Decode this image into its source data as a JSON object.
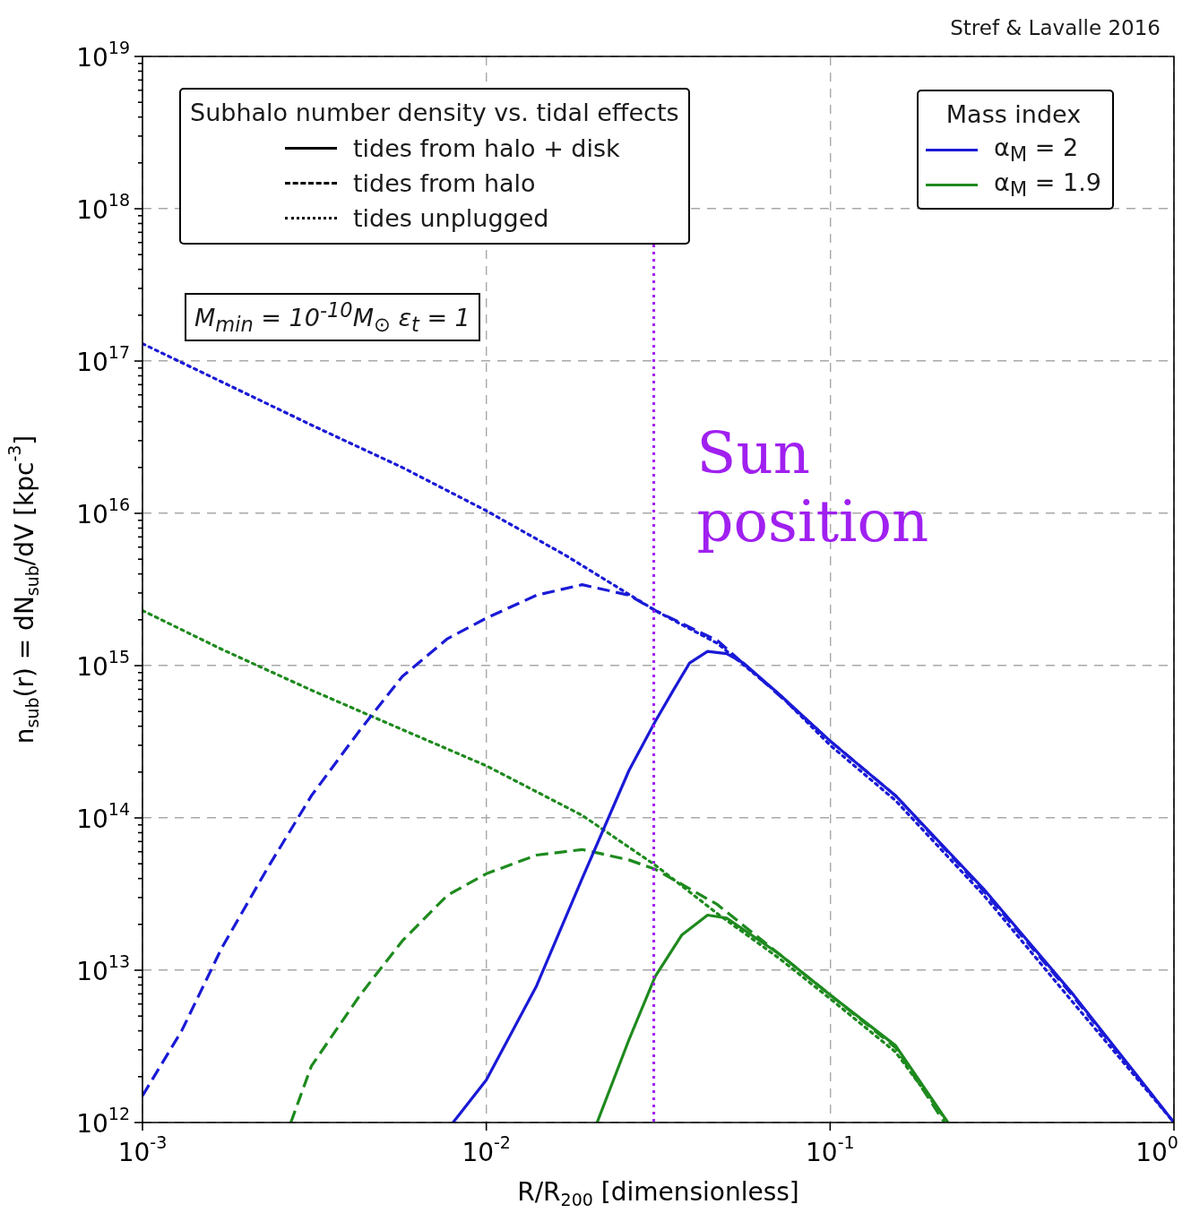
{
  "chart_data": {
    "type": "line",
    "xlabel": "R/R$_{200}$ [dimensionless]",
    "ylabel": "n$_{sub}$(r) = dN$_{sub}$/dV [kpc$^{-3}$]",
    "legend_title": "Mass index",
    "legend": "top right",
    "grid": true,
    "log": "xy",
    "xlim": [
      0.001,
      1
    ],
    "xticks": [
      {
        "value": 0.001,
        "label": "10$^{-3}$"
      },
      {
        "value": 0.01,
        "label": "10$^{-2}$"
      },
      {
        "value": 0.1,
        "label": "10$^{-1}$"
      },
      {
        "value": 1,
        "label": "10$^{0}$"
      }
    ],
    "ylim": [
      1000000000000.0,
      1e+19
    ],
    "yticks": [
      {
        "value": 1000000000000.0,
        "label": "10$^{12}$"
      },
      {
        "value": 2000000000000.0,
        "label": null
      },
      {
        "value": 3000000000000.0,
        "label": null
      },
      {
        "value": 4000000000000.0,
        "label": null
      },
      {
        "value": 5000000000000.0,
        "label": null
      },
      {
        "value": 6000000000000.0,
        "label": null
      },
      {
        "value": 7000000000000.0,
        "label": null
      },
      {
        "value": 8000000000000.0,
        "label": null
      },
      {
        "value": 9000000000000.0,
        "label": null
      },
      {
        "value": 10000000000000.0,
        "label": "10$^{13}$"
      },
      {
        "value": 20000000000000.0,
        "label": null
      },
      {
        "value": 30000000000000.0,
        "label": null
      },
      {
        "value": 40000000000000.0,
        "label": null
      },
      {
        "value": 50000000000000.0,
        "label": null
      },
      {
        "value": 60000000000000.0,
        "label": null
      },
      {
        "value": 70000000000000.0,
        "label": null
      },
      {
        "value": 80000000000000.0,
        "label": null
      },
      {
        "value": 90000000000000.0,
        "label": null
      },
      {
        "value": 100000000000000.0,
        "label": "10$^{14}$"
      },
      {
        "value": 200000000000000.0,
        "label": null
      },
      {
        "value": 300000000000000.0,
        "label": null
      },
      {
        "value": 400000000000000.0,
        "label": null
      },
      {
        "value": 500000000000000.0,
        "label": null
      },
      {
        "value": 600000000000000.0,
        "label": null
      },
      {
        "value": 700000000000000.0,
        "label": null
      },
      {
        "value": 800000000000000.0,
        "label": null
      },
      {
        "value": 900000000000000.0,
        "label": null
      },
      {
        "value": 1000000000000000.0,
        "label": "10$^{15}$"
      },
      {
        "value": 2000000000000000.0,
        "label": null
      },
      {
        "value": 3000000000000000.0,
        "label": null
      },
      {
        "value": 4000000000000000.0,
        "label": null
      },
      {
        "value": 5000000000000000.0,
        "label": null
      },
      {
        "value": 6000000000000000.0,
        "label": null
      },
      {
        "value": 7000000000000000.0,
        "label": null
      },
      {
        "value": 8000000000000000.0,
        "label": null
      },
      {
        "value": 9000000000000000.0,
        "label": null
      },
      {
        "value": 1e+16,
        "label": "10$^{16}$"
      },
      {
        "value": 2e+16,
        "label": null
      },
      {
        "value": 3e+16,
        "label": null
      },
      {
        "value": 4e+16,
        "label": null
      },
      {
        "value": 5e+16,
        "label": null
      },
      {
        "value": 6e+16,
        "label": null
      },
      {
        "value": 7e+16,
        "label": null
      },
      {
        "value": 8e+16,
        "label": null
      },
      {
        "value": 9e+16,
        "label": null
      },
      {
        "value": 1e+17,
        "label": "10$^{17}$"
      },
      {
        "value": 2e+17,
        "label": null
      },
      {
        "value": 3e+17,
        "label": null
      },
      {
        "value": 4e+17,
        "label": null
      },
      {
        "value": 5e+17,
        "label": null
      },
      {
        "value": 6e+17,
        "label": null
      },
      {
        "value": 7e+17,
        "label": null
      },
      {
        "value": 8e+17,
        "label": null
      },
      {
        "value": 9e+17,
        "label": null
      },
      {
        "value": 1e+18,
        "label": "10$^{18}$"
      },
      {
        "value": 2e+18,
        "label": null
      },
      {
        "value": 3e+18,
        "label": null
      },
      {
        "value": 4e+18,
        "label": null
      },
      {
        "value": 5e+18,
        "label": null
      },
      {
        "value": 6e+18,
        "label": null
      },
      {
        "value": 7e+18,
        "label": null
      },
      {
        "value": 8e+18,
        "label": null
      },
      {
        "value": 9e+18,
        "label": null
      },
      {
        "value": 1e+19,
        "label": "10$^{19}$"
      }
    ],
    "ref_lines": [
      {
        "axis": "x",
        "value": 0.0307,
        "label": "Sun position",
        "color": "#a020f0",
        "line_style": "dotted"
      }
    ],
    "annotations": [
      "Subhalo number density vs. tidal effects",
      "tides from halo + disk",
      "tides from halo",
      "tides unplugged",
      "M$_{min}$ = 10$^{-10}$M$_{⊙}$   ε$_{t}$ = 1",
      "Stref & Lavalle 2016"
    ],
    "series": [
      {
        "name": "α$_{M}$ = 2",
        "color": "#1a1ad6",
        "line_style": "solid",
        "x": [
          0.008,
          0.01,
          0.014,
          0.019,
          0.026,
          0.031,
          0.035,
          0.039,
          0.044,
          0.05,
          0.056,
          0.071,
          0.1,
          0.155,
          0.28,
          0.51,
          1
        ],
        "values": [
          1000000000000.0,
          1900000000000.0,
          7900000000000.0,
          40000000000000.0,
          205000000000000.0,
          430000000000000.0,
          690000000000000.0,
          1040000000000000.0,
          1240000000000000.0,
          1200000000000000.0,
          1040000000000000.0,
          650000000000000.0,
          320000000000000.0,
          140000000000000.0,
          34000000000000.0,
          6900000000000.0,
          1000000000000.0
        ]
      },
      {
        "color": "#1a1ad6",
        "line_style": "dashed",
        "x": [
          0.001,
          0.0013,
          0.0017,
          0.0023,
          0.0031,
          0.0043,
          0.0057,
          0.0077,
          0.01,
          0.014,
          0.019,
          0.026,
          0.031,
          0.047,
          0.071,
          0.1,
          0.155,
          0.28,
          0.51,
          1
        ],
        "values": [
          1500000000000.0,
          4000000000000.0,
          14000000000000.0,
          46000000000000.0,
          140000000000000.0,
          380000000000000.0,
          850000000000000.0,
          1500000000000000.0,
          2050000000000000.0,
          2900000000000000.0,
          3400000000000000.0,
          2900000000000000.0,
          2300000000000000.0,
          1460000000000000.0,
          640000000000000.0,
          320000000000000.0,
          140000000000000.0,
          33000000000000.0,
          6700000000000.0,
          1000000000000.0
        ]
      },
      {
        "color": "#1a1ad6",
        "line_style": "dotted",
        "x": [
          0.001,
          0.0017,
          0.0031,
          0.0057,
          0.01,
          0.017,
          0.031,
          0.047,
          0.071,
          0.1,
          0.155,
          0.28,
          0.51,
          1
        ],
        "values": [
          1.3e+17,
          7.3e+16,
          3.8e+16,
          2e+16,
          1.04e+16,
          5300000000000000.0,
          2300000000000000.0,
          1400000000000000.0,
          650000000000000.0,
          300000000000000.0,
          130000000000000.0,
          31000000000000.0,
          6100000000000.0,
          1000000000000.0
        ]
      },
      {
        "name": "α$_{M}$ = 1.9",
        "color": "#1e8a1e",
        "line_style": "solid",
        "x": [
          0.021,
          0.026,
          0.031,
          0.037,
          0.044,
          0.05,
          0.071,
          0.1,
          0.155,
          0.22
        ],
        "values": [
          1000000000000.0,
          3500000000000.0,
          9100000000000.0,
          17000000000000.0,
          23000000000000.0,
          22000000000000.0,
          12800000000000.0,
          6900000000000.0,
          3200000000000.0,
          1000000000000.0
        ]
      },
      {
        "color": "#1e8a1e",
        "line_style": "dashed",
        "x": [
          0.0027,
          0.0031,
          0.0043,
          0.0057,
          0.0077,
          0.01,
          0.014,
          0.019,
          0.026,
          0.031,
          0.047,
          0.071,
          0.1,
          0.155,
          0.215
        ],
        "values": [
          1000000000000.0,
          2350000000000.0,
          6900000000000.0,
          15600000000000.0,
          31000000000000.0,
          43000000000000.0,
          57000000000000.0,
          62000000000000.0,
          53000000000000.0,
          46000000000000.0,
          27000000000000.0,
          12800000000000.0,
          6900000000000.0,
          3100000000000.0,
          1000000000000.0
        ]
      },
      {
        "color": "#1e8a1e",
        "line_style": "dotted",
        "x": [
          0.001,
          0.0017,
          0.0031,
          0.0057,
          0.01,
          0.019,
          0.031,
          0.047,
          0.071,
          0.1,
          0.155,
          0.22
        ],
        "values": [
          2300000000000000.0,
          1280000000000000.0,
          690000000000000.0,
          380000000000000.0,
          220000000000000.0,
          104000000000000.0,
          49000000000000.0,
          23500000000000.0,
          12000000000000.0,
          6500000000000.0,
          2900000000000.0,
          1000000000000.0
        ]
      }
    ]
  }
}
